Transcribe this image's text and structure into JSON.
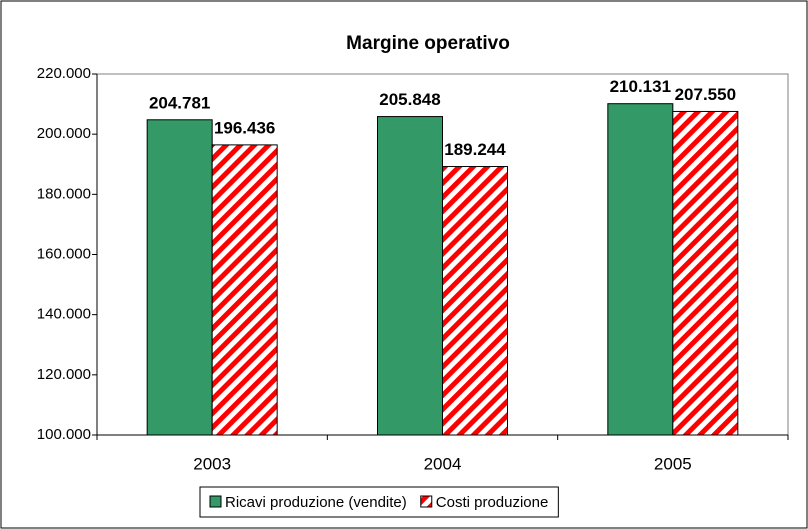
{
  "chart_data": {
    "type": "bar",
    "title": "Margine operativo",
    "categories": [
      "2003",
      "2004",
      "2005"
    ],
    "series": [
      {
        "name": "Ricavi produzione (vendite)",
        "color": "#339966",
        "hatch": false,
        "values": [
          204781,
          205848,
          210131
        ],
        "value_labels": [
          "204.781",
          "205.848",
          "210.131"
        ]
      },
      {
        "name": "Costi produzione",
        "color": "#ff0000",
        "hatch": true,
        "values": [
          196436,
          189244,
          207550
        ],
        "value_labels": [
          "196.436",
          "189.244",
          "207.550"
        ]
      }
    ],
    "ylim": [
      100000,
      220000
    ],
    "yticks": [
      {
        "value": 100000,
        "label": "100.000"
      },
      {
        "value": 120000,
        "label": "120.000"
      },
      {
        "value": 140000,
        "label": "140.000"
      },
      {
        "value": 160000,
        "label": "160.000"
      },
      {
        "value": 180000,
        "label": "180.000"
      },
      {
        "value": 200000,
        "label": "200.000"
      },
      {
        "value": 220000,
        "label": "220.000"
      }
    ],
    "grid": false,
    "legend": "bottom"
  }
}
